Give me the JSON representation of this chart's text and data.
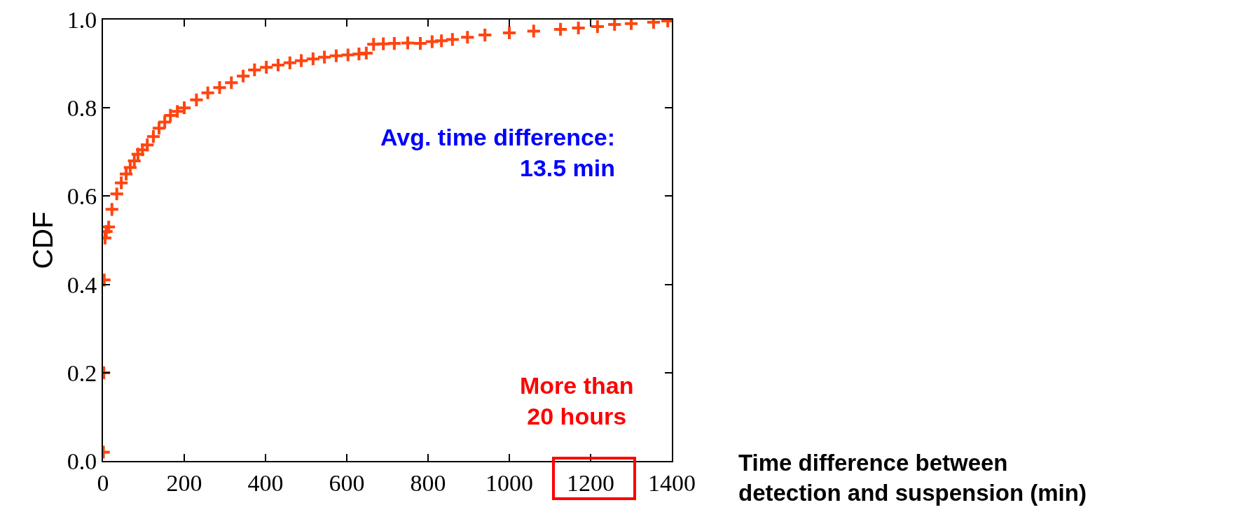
{
  "chart_data": {
    "type": "scatter",
    "xlabel": "Time difference between\ndetection and suspension (min)",
    "ylabel": "CDF",
    "annotations": [
      "Avg. time difference:\n13.5 min",
      "More than\n20 hours"
    ],
    "marker": "cross",
    "series": [
      {
        "color": "#ff4510",
        "x": [
          1,
          2,
          3,
          5,
          8,
          14,
          22,
          34,
          45,
          57,
          67,
          77,
          86,
          97,
          109,
          124,
          138,
          152,
          166,
          183,
          200,
          230,
          258,
          287,
          316,
          345,
          373,
          402,
          431,
          460,
          488,
          517,
          545,
          574,
          603,
          630,
          648,
          666,
          690,
          717,
          750,
          781,
          810,
          833,
          860,
          897,
          940,
          1000,
          1060,
          1126,
          1170,
          1217,
          1259,
          1300,
          1355,
          1390
        ],
        "values": [
          0.02,
          0.2,
          0.41,
          0.505,
          0.52,
          0.53,
          0.57,
          0.605,
          0.63,
          0.65,
          0.665,
          0.68,
          0.695,
          0.705,
          0.716,
          0.735,
          0.754,
          0.768,
          0.783,
          0.792,
          0.8,
          0.818,
          0.834,
          0.846,
          0.857,
          0.872,
          0.886,
          0.892,
          0.897,
          0.902,
          0.907,
          0.911,
          0.915,
          0.918,
          0.92,
          0.922,
          0.924,
          0.944,
          0.945,
          0.946,
          0.947,
          0.946,
          0.95,
          0.952,
          0.955,
          0.96,
          0.965,
          0.97,
          0.974,
          0.978,
          0.981,
          0.984,
          0.989,
          0.991,
          0.994,
          0.997
        ]
      }
    ],
    "xlim": [
      0,
      1400
    ],
    "xticks": [
      0,
      200,
      400,
      600,
      800,
      1000,
      1200,
      1400
    ],
    "ylim": [
      0,
      1.0
    ],
    "yticks": [
      {
        "value": 0,
        "label": "0.0"
      },
      {
        "value": 0.2,
        "label": "0.2"
      },
      {
        "value": 0.4,
        "label": "0.4"
      },
      {
        "value": 0.6,
        "label": "0.6"
      },
      {
        "value": 0.8,
        "label": "0.8"
      },
      {
        "value": 1.0,
        "label": "1.0"
      }
    ]
  }
}
